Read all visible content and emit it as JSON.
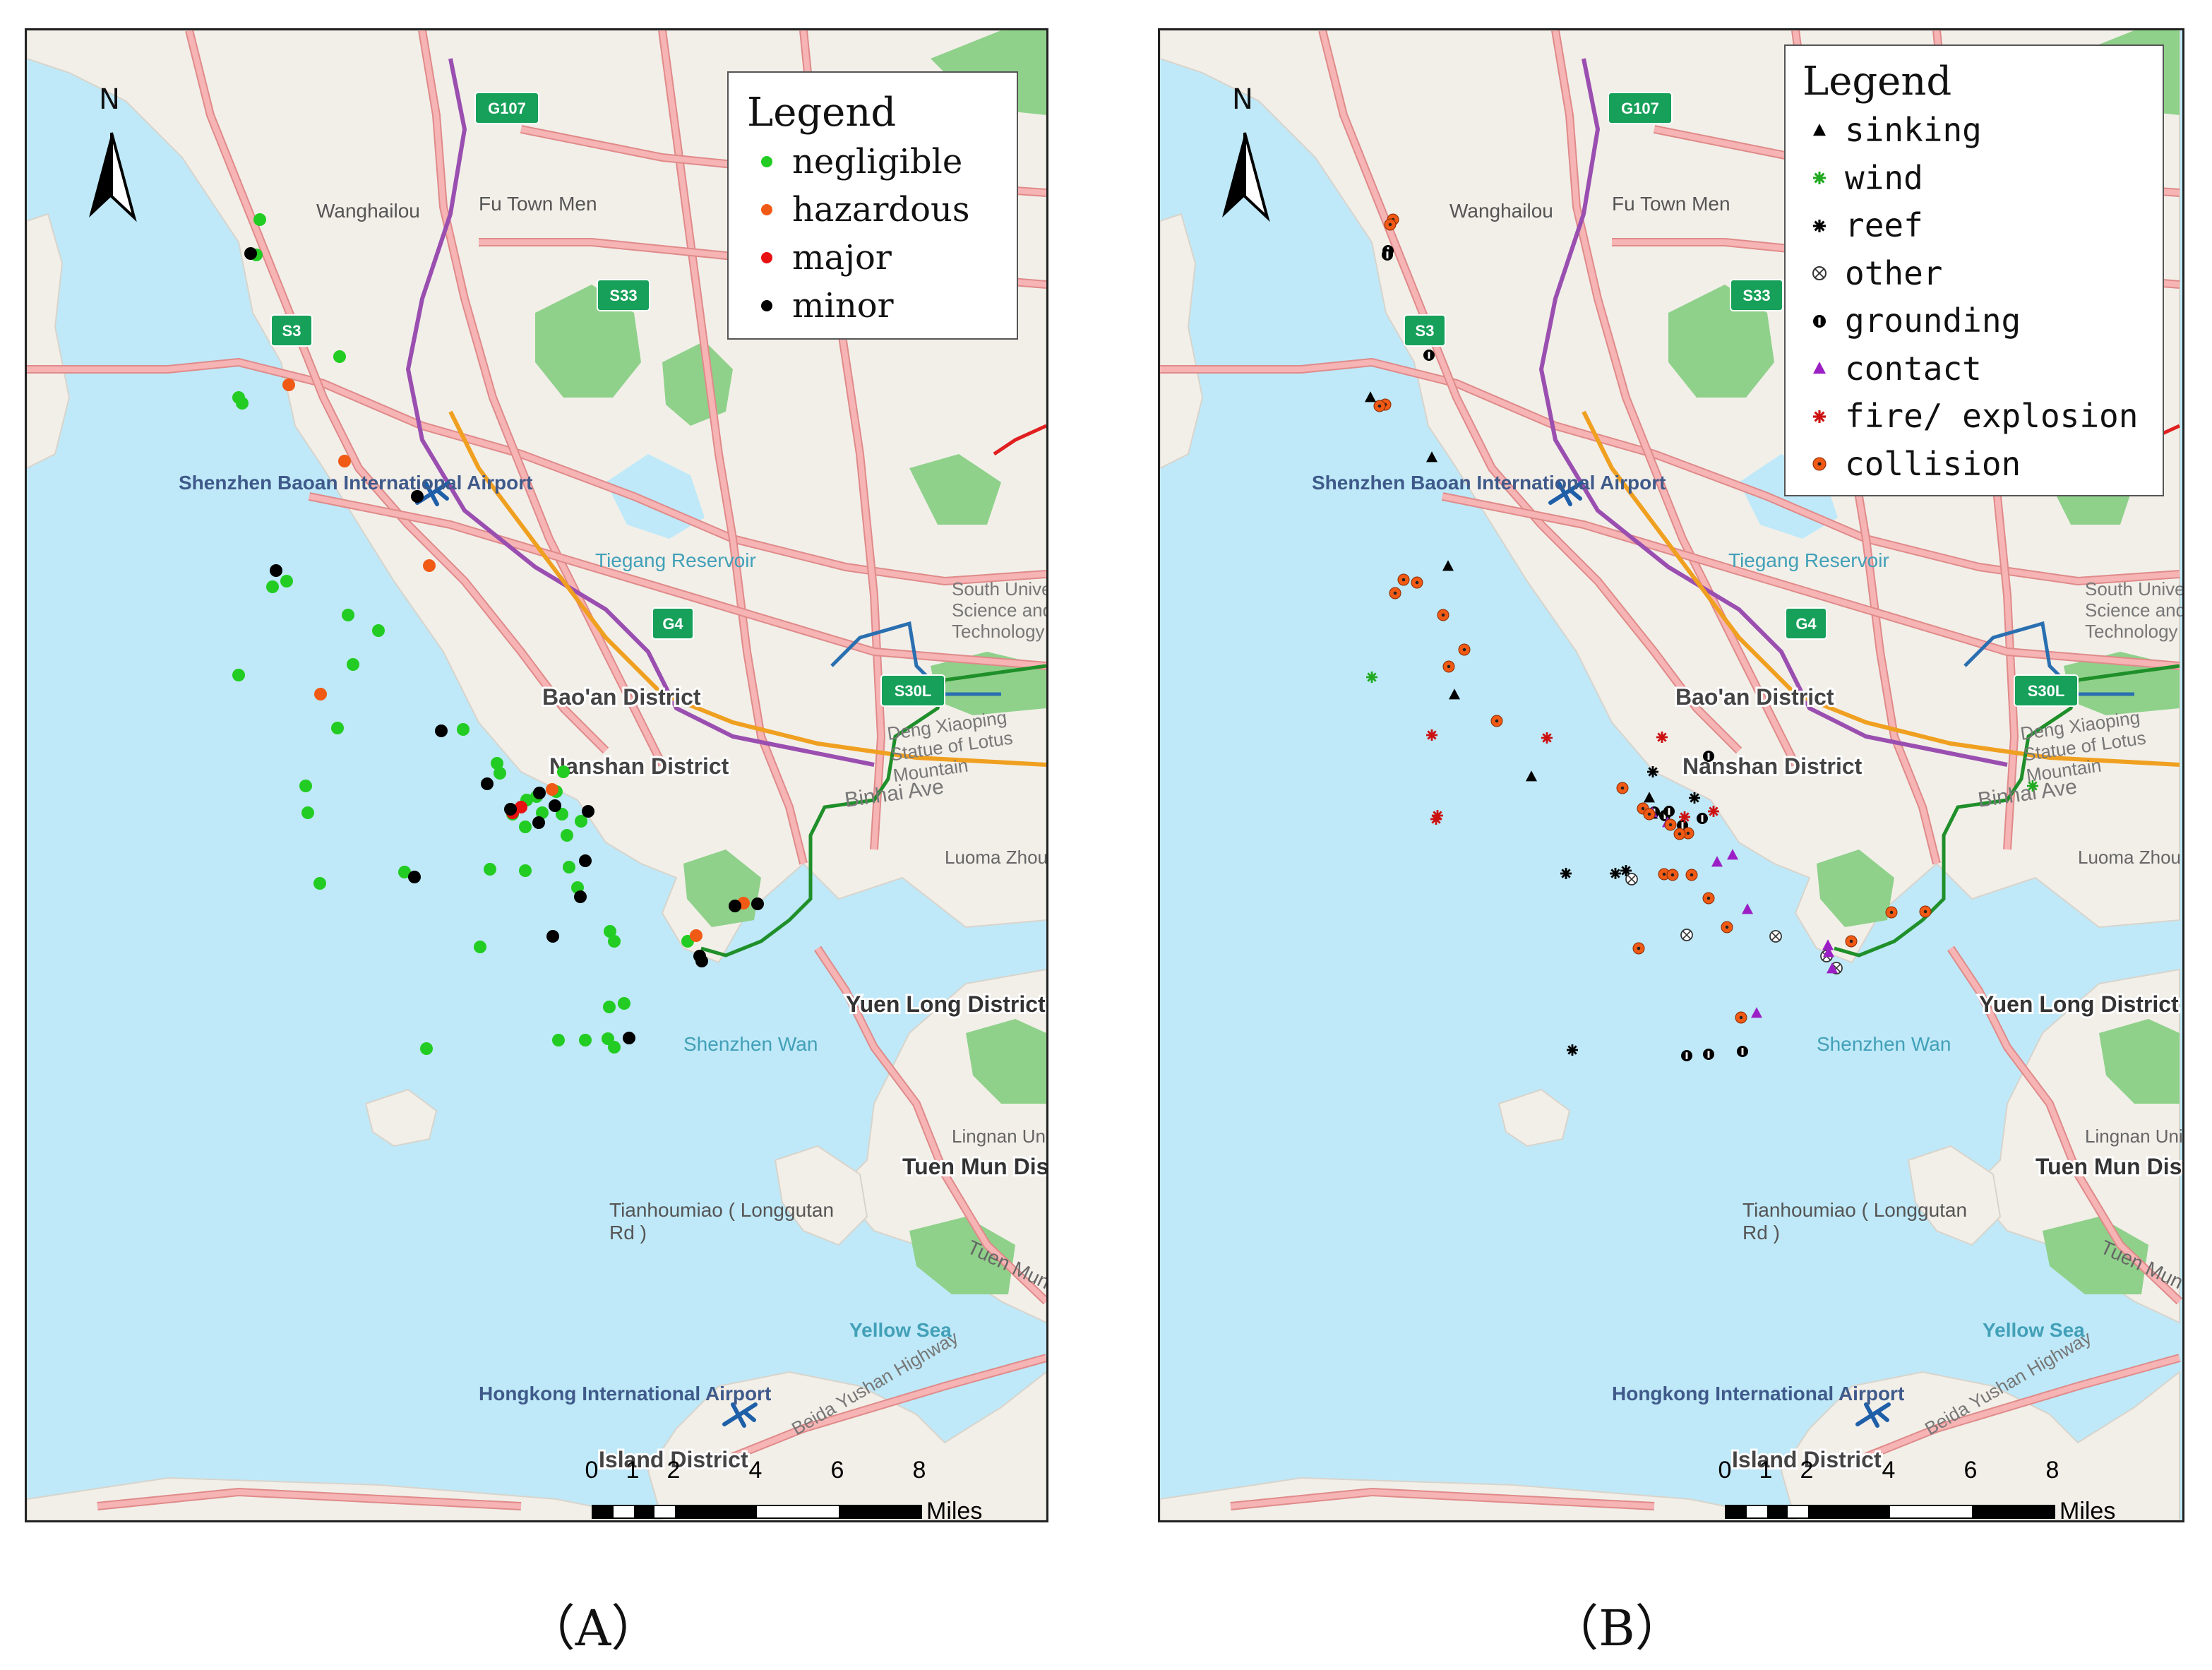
{
  "panels": [
    {
      "id": "A",
      "caption": "（A）",
      "legend": {
        "title": "Legend",
        "items": [
          {
            "label": "negligible",
            "color": "#22cc22",
            "shape": "circle"
          },
          {
            "label": "hazardous",
            "color": "#f05a14",
            "shape": "circle"
          },
          {
            "label": "major",
            "color": "#e81010",
            "shape": "circle"
          },
          {
            "label": "minor",
            "color": "#000000",
            "shape": "circle"
          }
        ]
      }
    },
    {
      "id": "B",
      "caption": "（B）",
      "legend": {
        "title": "Legend",
        "items": [
          {
            "label": "sinking",
            "color": "#000000",
            "shape": "triangle"
          },
          {
            "label": "wind",
            "color": "#22aa22",
            "shape": "asterisk"
          },
          {
            "label": "reef",
            "color": "#000000",
            "shape": "asterisk"
          },
          {
            "label": "other",
            "color": "#333333",
            "shape": "circle-x"
          },
          {
            "label": "grounding",
            "color": "#000000",
            "shape": "half-circle"
          },
          {
            "label": "contact",
            "color": "#9b1fc4",
            "shape": "triangle"
          },
          {
            "label": "fire/ explosion",
            "color": "#cc1111",
            "shape": "asterisk"
          },
          {
            "label": "collision",
            "color": "#f05a14",
            "shape": "dot-circle"
          }
        ]
      }
    }
  ],
  "map": {
    "north_label": "N",
    "scale": {
      "ticks": [
        "0",
        "1",
        "2",
        "4",
        "6",
        "8"
      ],
      "unit": "Miles"
    },
    "labels": [
      {
        "text": "Wanghailou",
        "kind": "place"
      },
      {
        "text": "Fu Town Men",
        "kind": "place"
      },
      {
        "text": "Shenzhen Baoan International Airport",
        "kind": "airport"
      },
      {
        "text": "Tiegang Reservoir",
        "kind": "water"
      },
      {
        "text": "Bao'an District",
        "kind": "district"
      },
      {
        "text": "Nanshan District",
        "kind": "district"
      },
      {
        "text": "South University of Science and Technology Of China",
        "kind": "place"
      },
      {
        "text": "Deng Xiaoping Statue of Lotus Mountain",
        "kind": "place"
      },
      {
        "text": "Binhai Ave",
        "kind": "road"
      },
      {
        "text": "Luoma Zhou",
        "kind": "place"
      },
      {
        "text": "Yuen Long District",
        "kind": "district"
      },
      {
        "text": "Shenzhen Wan",
        "kind": "water"
      },
      {
        "text": "Lingnan University",
        "kind": "place"
      },
      {
        "text": "Tuen Mun District",
        "kind": "district"
      },
      {
        "text": "Tianhoumiao ( Longgutan Rd )",
        "kind": "place"
      },
      {
        "text": "Tuen Mun",
        "kind": "road"
      },
      {
        "text": "Yellow Sea",
        "kind": "water"
      },
      {
        "text": "Hongkong International Airport",
        "kind": "airport"
      },
      {
        "text": "Island District",
        "kind": "district"
      },
      {
        "text": "Beida Yushan Highway",
        "kind": "road"
      },
      {
        "text": "G107",
        "kind": "shield"
      },
      {
        "text": "S3",
        "kind": "shield"
      },
      {
        "text": "S33",
        "kind": "shield"
      },
      {
        "text": "G4",
        "kind": "shield"
      },
      {
        "text": "S30L",
        "kind": "shield"
      }
    ]
  },
  "accidents_by_severity": {
    "negligible": 44,
    "hazardous": 7,
    "major": 2,
    "minor": 19
  },
  "accidents_by_type": {
    "sinking": 7,
    "wind": 2,
    "reef": 6,
    "other": 5,
    "grounding": 12,
    "contact": 9,
    "fire/ explosion": 7,
    "collision": 27
  }
}
